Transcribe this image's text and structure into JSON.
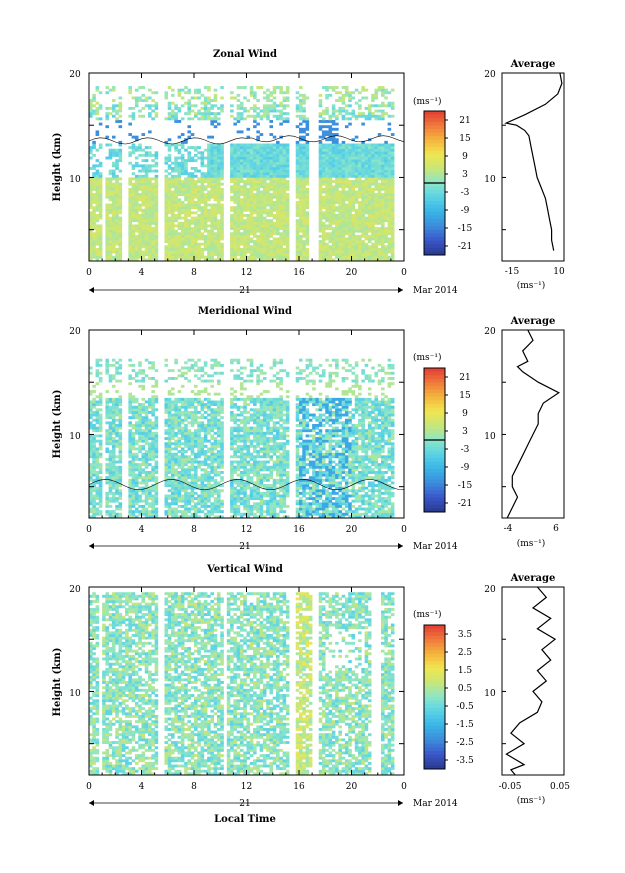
{
  "chart_data": [
    {
      "type": "heatmap",
      "title": "Zonal Wind",
      "ylabel": "Height (km)",
      "ylim": [
        2,
        20
      ],
      "xlim": [
        0,
        24
      ],
      "x_ticks": [
        "0",
        "4",
        "8",
        "12",
        "16",
        "20",
        "0"
      ],
      "y_ticks": [
        "20",
        "10"
      ],
      "date_axis": {
        "day": "21",
        "label": "Mar 2014"
      },
      "colorbar": {
        "unit": "(ms⁻¹)",
        "ticks": [
          "21",
          "15",
          "9",
          "3",
          "-3",
          "-9",
          "-15",
          "-21"
        ],
        "range": [
          -24,
          24
        ],
        "zero_line": true
      },
      "data_gaps_hours": [
        [
          0.9,
          1.3
        ],
        [
          2.6,
          3.0
        ],
        [
          5.3,
          5.8
        ],
        [
          10.2,
          10.7
        ],
        [
          15.3,
          15.8
        ],
        [
          16.7,
          17.4
        ],
        [
          23.2,
          24
        ]
      ],
      "profile": {
        "title": "Average",
        "xlabel": "(ms⁻¹)",
        "xlim": [
          -19,
          11
        ],
        "x_ticks": [
          "-15",
          "10"
        ],
        "y_ticks": [
          "20",
          "10"
        ],
        "x": [
          9,
          10,
          8,
          2,
          -8,
          -17,
          -12,
          -8,
          -6,
          -5,
          -4,
          -3,
          -2,
          0,
          2,
          3,
          4,
          5,
          5,
          6
        ],
        "y": [
          20,
          19,
          18,
          17,
          16,
          15.2,
          15,
          14.5,
          14,
          13,
          12,
          11,
          10,
          9,
          8,
          7,
          6,
          5,
          4,
          3
        ]
      }
    },
    {
      "type": "heatmap",
      "title": "Meridional Wind",
      "ylabel": "Height (km)",
      "ylim": [
        2,
        20
      ],
      "xlim": [
        0,
        24
      ],
      "x_ticks": [
        "0",
        "4",
        "8",
        "12",
        "16",
        "20",
        "0"
      ],
      "y_ticks": [
        "20",
        "10"
      ],
      "date_axis": {
        "day": "21",
        "label": "Mar 2014"
      },
      "colorbar": {
        "unit": "(ms⁻¹)",
        "ticks": [
          "21",
          "15",
          "9",
          "3",
          "-3",
          "-9",
          "-15",
          "-21"
        ],
        "range": [
          -24,
          24
        ],
        "zero_line": true
      },
      "data_gaps_hours": [
        [
          0.9,
          1.3
        ],
        [
          2.6,
          3.0
        ],
        [
          5.3,
          5.8
        ],
        [
          10.2,
          10.7
        ],
        [
          15.3,
          15.8
        ],
        [
          23.2,
          24
        ]
      ],
      "profile": {
        "title": "Average",
        "xlabel": "(ms⁻¹)",
        "xlim": [
          -5,
          7
        ],
        "x_ticks": [
          "-4",
          "6"
        ],
        "y_ticks": [
          "20",
          "10"
        ],
        "x": [
          0,
          1,
          -1,
          0,
          -2,
          -1,
          2,
          6,
          3,
          2,
          2,
          1,
          0,
          -1,
          -2,
          -3,
          -3,
          -2,
          -3,
          -4
        ],
        "y": [
          20,
          19,
          18,
          17,
          16.5,
          16,
          15,
          14,
          13,
          12,
          11,
          10,
          9,
          8,
          7,
          6,
          5,
          4,
          3,
          2
        ]
      }
    },
    {
      "type": "heatmap",
      "title": "Vertical Wind",
      "xlabel": "Local Time",
      "ylabel": "Height (km)",
      "ylim": [
        2,
        20
      ],
      "xlim": [
        0,
        24
      ],
      "x_ticks": [
        "0",
        "4",
        "8",
        "12",
        "16",
        "20",
        "0"
      ],
      "y_ticks": [
        "20",
        "10"
      ],
      "date_axis": {
        "day": "21",
        "label": "Mar 2014"
      },
      "colorbar": {
        "unit": "(ms⁻¹)",
        "ticks": [
          "3.5",
          "2.5",
          "1.5",
          "0.5",
          "-0.5",
          "-1.5",
          "-2.5",
          "-3.5"
        ],
        "range": [
          -4,
          4
        ],
        "zero_line": false
      },
      "data_gaps_hours": [
        [
          0.7,
          1.0
        ],
        [
          5.3,
          5.8
        ],
        [
          10.2,
          10.6
        ],
        [
          15.3,
          15.8
        ],
        [
          17.1,
          17.4
        ],
        [
          21.6,
          22.3
        ],
        [
          23.2,
          24
        ]
      ],
      "profile": {
        "title": "Average",
        "xlabel": "(ms⁻¹)",
        "xlim": [
          -0.07,
          0.07
        ],
        "x_ticks": [
          "-0.05",
          "0.05"
        ],
        "y_ticks": [
          "20",
          "10"
        ],
        "x": [
          0.01,
          0.03,
          0.0,
          0.04,
          0.01,
          0.05,
          0.02,
          0.04,
          0.01,
          0.03,
          0.0,
          0.02,
          0.01,
          -0.03,
          -0.05,
          -0.02,
          -0.06,
          -0.02,
          -0.05,
          -0.04
        ],
        "y": [
          20,
          19,
          18,
          17,
          16,
          15,
          14,
          13,
          12,
          11,
          10,
          9,
          8,
          7,
          6,
          5,
          4,
          3,
          2.5,
          2
        ]
      }
    }
  ]
}
